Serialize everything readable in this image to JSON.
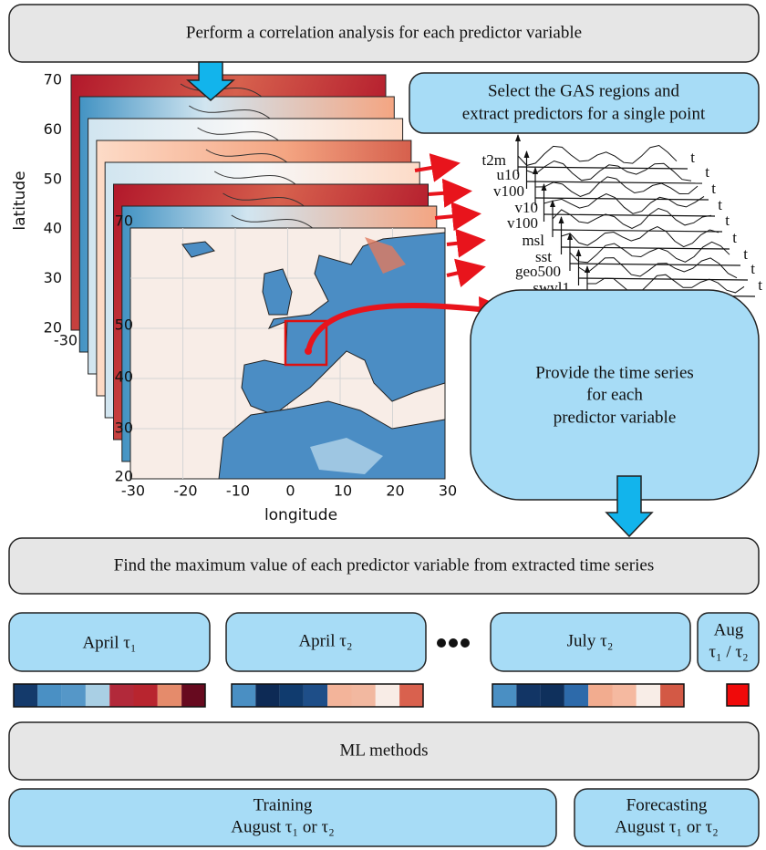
{
  "steps": {
    "correlation": "Perform a correlation analysis for each predictor variable",
    "select": [
      "Select the GAS regions and",
      "extract predictors for a single point"
    ],
    "provide": [
      "Provide the time series",
      "for each",
      "predictor variable"
    ],
    "maximum": "Find the maximum value of each predictor variable from extracted time series",
    "ml": "ML methods"
  },
  "map": {
    "ylabel": "latitude",
    "xlabel": "longitude",
    "back_yticks": [
      "70",
      "60",
      "50",
      "40",
      "30",
      "20"
    ],
    "back_xtick": "-30",
    "front_yticks": [
      "70",
      "50",
      "40",
      "30",
      "20"
    ],
    "front_xticks": [
      "-30",
      "-20",
      "-10",
      "0",
      "10",
      "20",
      "30"
    ]
  },
  "series": {
    "variables": [
      "t2m",
      "u10",
      "v100",
      "v10",
      "v100",
      "msl",
      "sst",
      "geo500",
      "swvl1"
    ],
    "time_labels": [
      "t",
      "t",
      "t",
      "t",
      "t",
      "t",
      "t",
      "t",
      "t"
    ]
  },
  "periods": [
    {
      "label": "April τ₁"
    },
    {
      "label": "April τ₂"
    },
    {
      "label": "July τ₂"
    },
    {
      "label": [
        "Aug",
        "τ₁ / τ₂"
      ]
    }
  ],
  "outputs": {
    "training": [
      "Training",
      "August τ₁ or τ₂"
    ],
    "forecasting": [
      "Forecasting",
      "August τ₁ or τ₂"
    ]
  }
}
